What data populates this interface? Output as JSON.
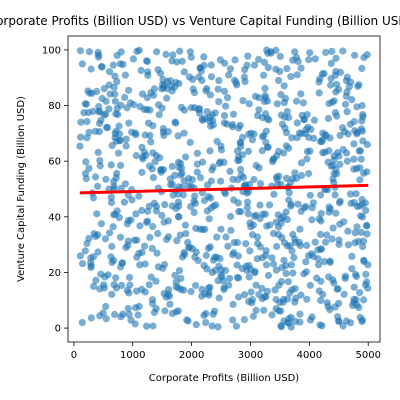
{
  "chart_data": {
    "type": "scatter",
    "title": "Corporate Profits (Billion USD) vs Venture Capital Funding (Billion USD)",
    "xlabel": "Corporate Profits (Billion USD)",
    "ylabel": "Venture Capital Funding (Billion USD)",
    "xlim": [
      -100,
      5200
    ],
    "ylim": [
      -5,
      105
    ],
    "xticks": [
      0,
      1000,
      2000,
      3000,
      4000,
      5000
    ],
    "yticks": [
      0,
      20,
      40,
      60,
      80,
      100
    ],
    "grid": false,
    "point_color": "#1f77b4",
    "point_alpha": 0.6,
    "trendline": {
      "color": "#ff0000",
      "x": [
        100,
        5000
      ],
      "y": [
        48.6,
        51.3
      ]
    },
    "points_generation": {
      "count": 1000,
      "x_range": [
        100,
        5000
      ],
      "y_range": [
        0,
        100
      ],
      "seed": 42
    }
  }
}
